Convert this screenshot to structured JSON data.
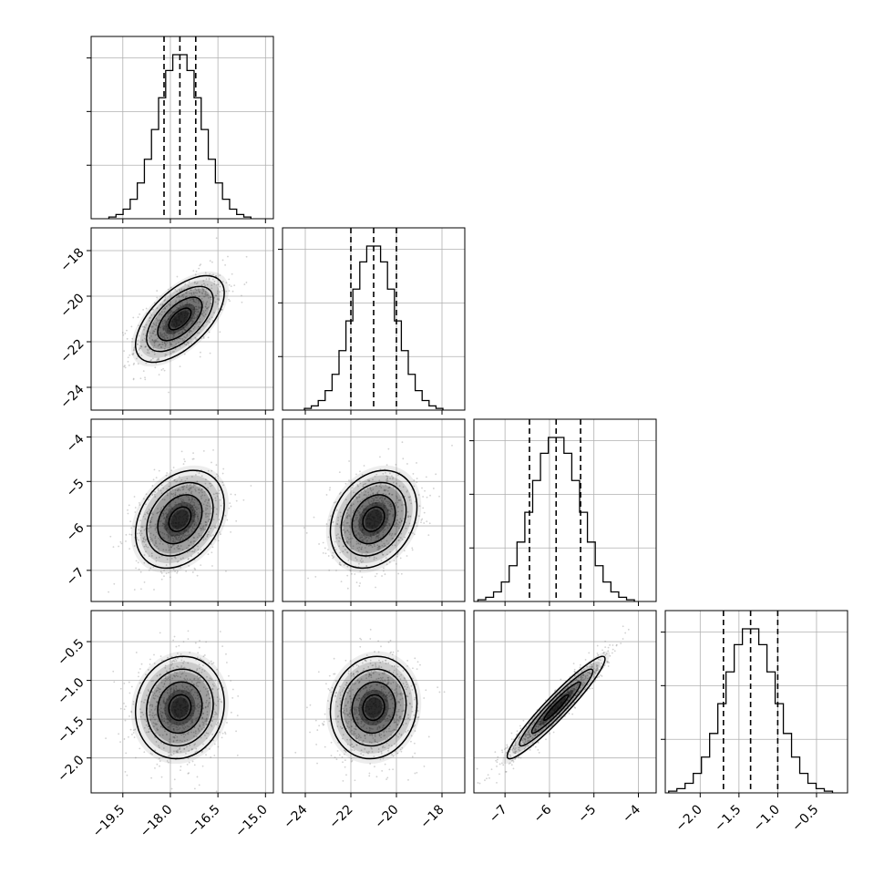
{
  "chart_data": {
    "type": "corner",
    "parameters": [
      {
        "name": "",
        "median": -17.7,
        "quantiles": [
          -18.2,
          -17.7,
          -17.2
        ],
        "sigma": 0.7,
        "range": [
          -20.5,
          -14.75
        ],
        "ticks": [
          -19.5,
          -18.0,
          -16.5,
          -15.0
        ],
        "tick_labels": [
          "−19.5",
          "−18.0",
          "−16.5",
          "−15.0"
        ]
      },
      {
        "name": "",
        "median": -21.0,
        "quantiles": [
          -22.0,
          -21.0,
          -20.0
        ],
        "sigma": 0.95,
        "range": [
          -25.0,
          -17.0
        ],
        "ticks": [
          -24,
          -22,
          -20,
          -18
        ],
        "tick_labels": [
          "−24",
          "−22",
          "−20",
          "−18"
        ]
      },
      {
        "name": "",
        "median": -5.85,
        "quantiles": [
          -6.45,
          -5.85,
          -5.3
        ],
        "sigma": 0.55,
        "range": [
          -7.7,
          -3.6
        ],
        "ticks": [
          -7,
          -6,
          -5,
          -4
        ],
        "tick_labels": [
          "−7",
          "−6",
          "−5",
          "−4"
        ]
      },
      {
        "name": "",
        "median": -1.35,
        "quantiles": [
          -1.7,
          -1.35,
          -1.0
        ],
        "sigma": 0.33,
        "range": [
          -2.45,
          -0.1
        ],
        "ticks": [
          -2.0,
          -1.5,
          -1.0,
          -0.5
        ],
        "tick_labels": [
          "−2.0",
          "−1.5",
          "−1.0",
          "−0.5"
        ]
      }
    ],
    "correlations": {
      "0-1": 0.6,
      "0-2": 0.3,
      "0-3": 0.08,
      "1-2": 0.25,
      "1-3": 0.08,
      "2-3": 0.95
    },
    "histogram_bins": 20,
    "contour_levels": [
      0.5,
      1.0,
      1.5,
      2.0
    ],
    "grid": true,
    "colors": {
      "frame": "#000000",
      "points": "#7a7a7a",
      "density": "#000000",
      "grid": "#b0b0b0"
    }
  }
}
